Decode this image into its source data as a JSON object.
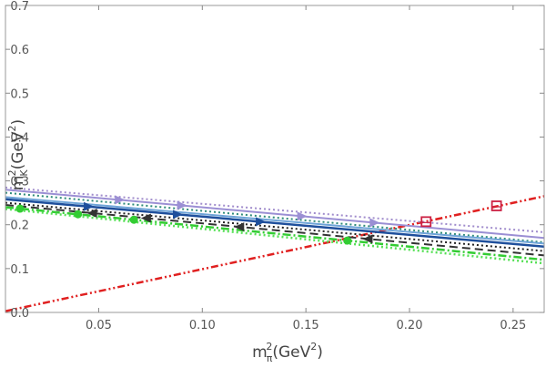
{
  "chart_data": {
    "type": "line",
    "title": "",
    "xlabel": {
      "base": "m",
      "sup": "2",
      "sub": "π",
      "unit": "(GeV",
      "unit_sup": "2",
      "unit_close": ")"
    },
    "ylabel": {
      "base": "m",
      "sup": "2",
      "sub": "K",
      "unit": "(GeV",
      "unit_sup": "2",
      "unit_close": ")"
    },
    "xlim": [
      0.005,
      0.265
    ],
    "ylim": [
      0.0,
      0.7
    ],
    "x_ticks": [
      0.05,
      0.1,
      0.15,
      0.2,
      0.25
    ],
    "x_tick_labels": [
      "0.05",
      "0.10",
      "0.15",
      "0.20",
      "0.25"
    ],
    "y_ticks": [
      0.0,
      0.1,
      0.2,
      0.3,
      0.4,
      0.5,
      0.6,
      0.7
    ],
    "y_tick_labels": [
      "0.0",
      "0.1",
      "0.2",
      "0.3",
      "0.4",
      "0.5",
      "0.6",
      "0.7"
    ],
    "grid": false,
    "legend": "none",
    "series": [
      {
        "name": "reference-line",
        "color": "#e02020",
        "style": "dashdotdot",
        "width": 2.5,
        "x": [
          0.005,
          0.265
        ],
        "y": [
          0.003,
          0.265
        ]
      },
      {
        "name": "lavender-dotted",
        "color": "#a08ccc",
        "style": "dotted",
        "width": 2,
        "x": [
          0.005,
          0.265
        ],
        "y": [
          0.285,
          0.183
        ]
      },
      {
        "name": "lavender-solid",
        "color": "#9b8fd4",
        "style": "solid",
        "width": 2,
        "x": [
          0.005,
          0.265
        ],
        "y": [
          0.28,
          0.17
        ],
        "marker": "triangle-right",
        "marker_x": [
          0.06,
          0.09,
          0.148,
          0.183
        ]
      },
      {
        "name": "teal-dotted",
        "color": "#2e8b7a",
        "style": "dotted",
        "width": 2,
        "x": [
          0.005,
          0.265
        ],
        "y": [
          0.273,
          0.16
        ]
      },
      {
        "name": "lightblue-solid",
        "color": "#6ea4d8",
        "style": "solid",
        "width": 2,
        "x": [
          0.005,
          0.265
        ],
        "y": [
          0.263,
          0.157
        ]
      },
      {
        "name": "navy-solid",
        "color": "#1e4f9c",
        "style": "solid",
        "width": 2.5,
        "x": [
          0.005,
          0.265
        ],
        "y": [
          0.258,
          0.15
        ],
        "marker": "triangle-right",
        "marker_x": [
          0.045,
          0.088,
          0.128
        ]
      },
      {
        "name": "black-dotted",
        "color": "#222222",
        "style": "dotted",
        "width": 2,
        "x": [
          0.005,
          0.265
        ],
        "y": [
          0.25,
          0.14
        ]
      },
      {
        "name": "black-dashed",
        "color": "#333333",
        "style": "dashed",
        "width": 2,
        "x": [
          0.005,
          0.265
        ],
        "y": [
          0.245,
          0.13
        ],
        "marker": "triangle-left",
        "marker_x": [
          0.047,
          0.073,
          0.118,
          0.18
        ]
      },
      {
        "name": "green-dashdot",
        "color": "#33cc33",
        "style": "dashdot",
        "width": 2.5,
        "x": [
          0.005,
          0.265
        ],
        "y": [
          0.24,
          0.12
        ],
        "marker": "circle",
        "marker_x": [
          0.012,
          0.04,
          0.067,
          0.17
        ]
      },
      {
        "name": "lime-dotted",
        "color": "#55e055",
        "style": "dotted",
        "width": 2.5,
        "x": [
          0.005,
          0.265
        ],
        "y": [
          0.236,
          0.112
        ]
      }
    ],
    "scatter_points": [
      {
        "name": "red-squares",
        "color": "#cc2244",
        "marker": "square",
        "x": [
          0.208,
          0.242
        ],
        "y": [
          0.207,
          0.243
        ]
      }
    ]
  }
}
